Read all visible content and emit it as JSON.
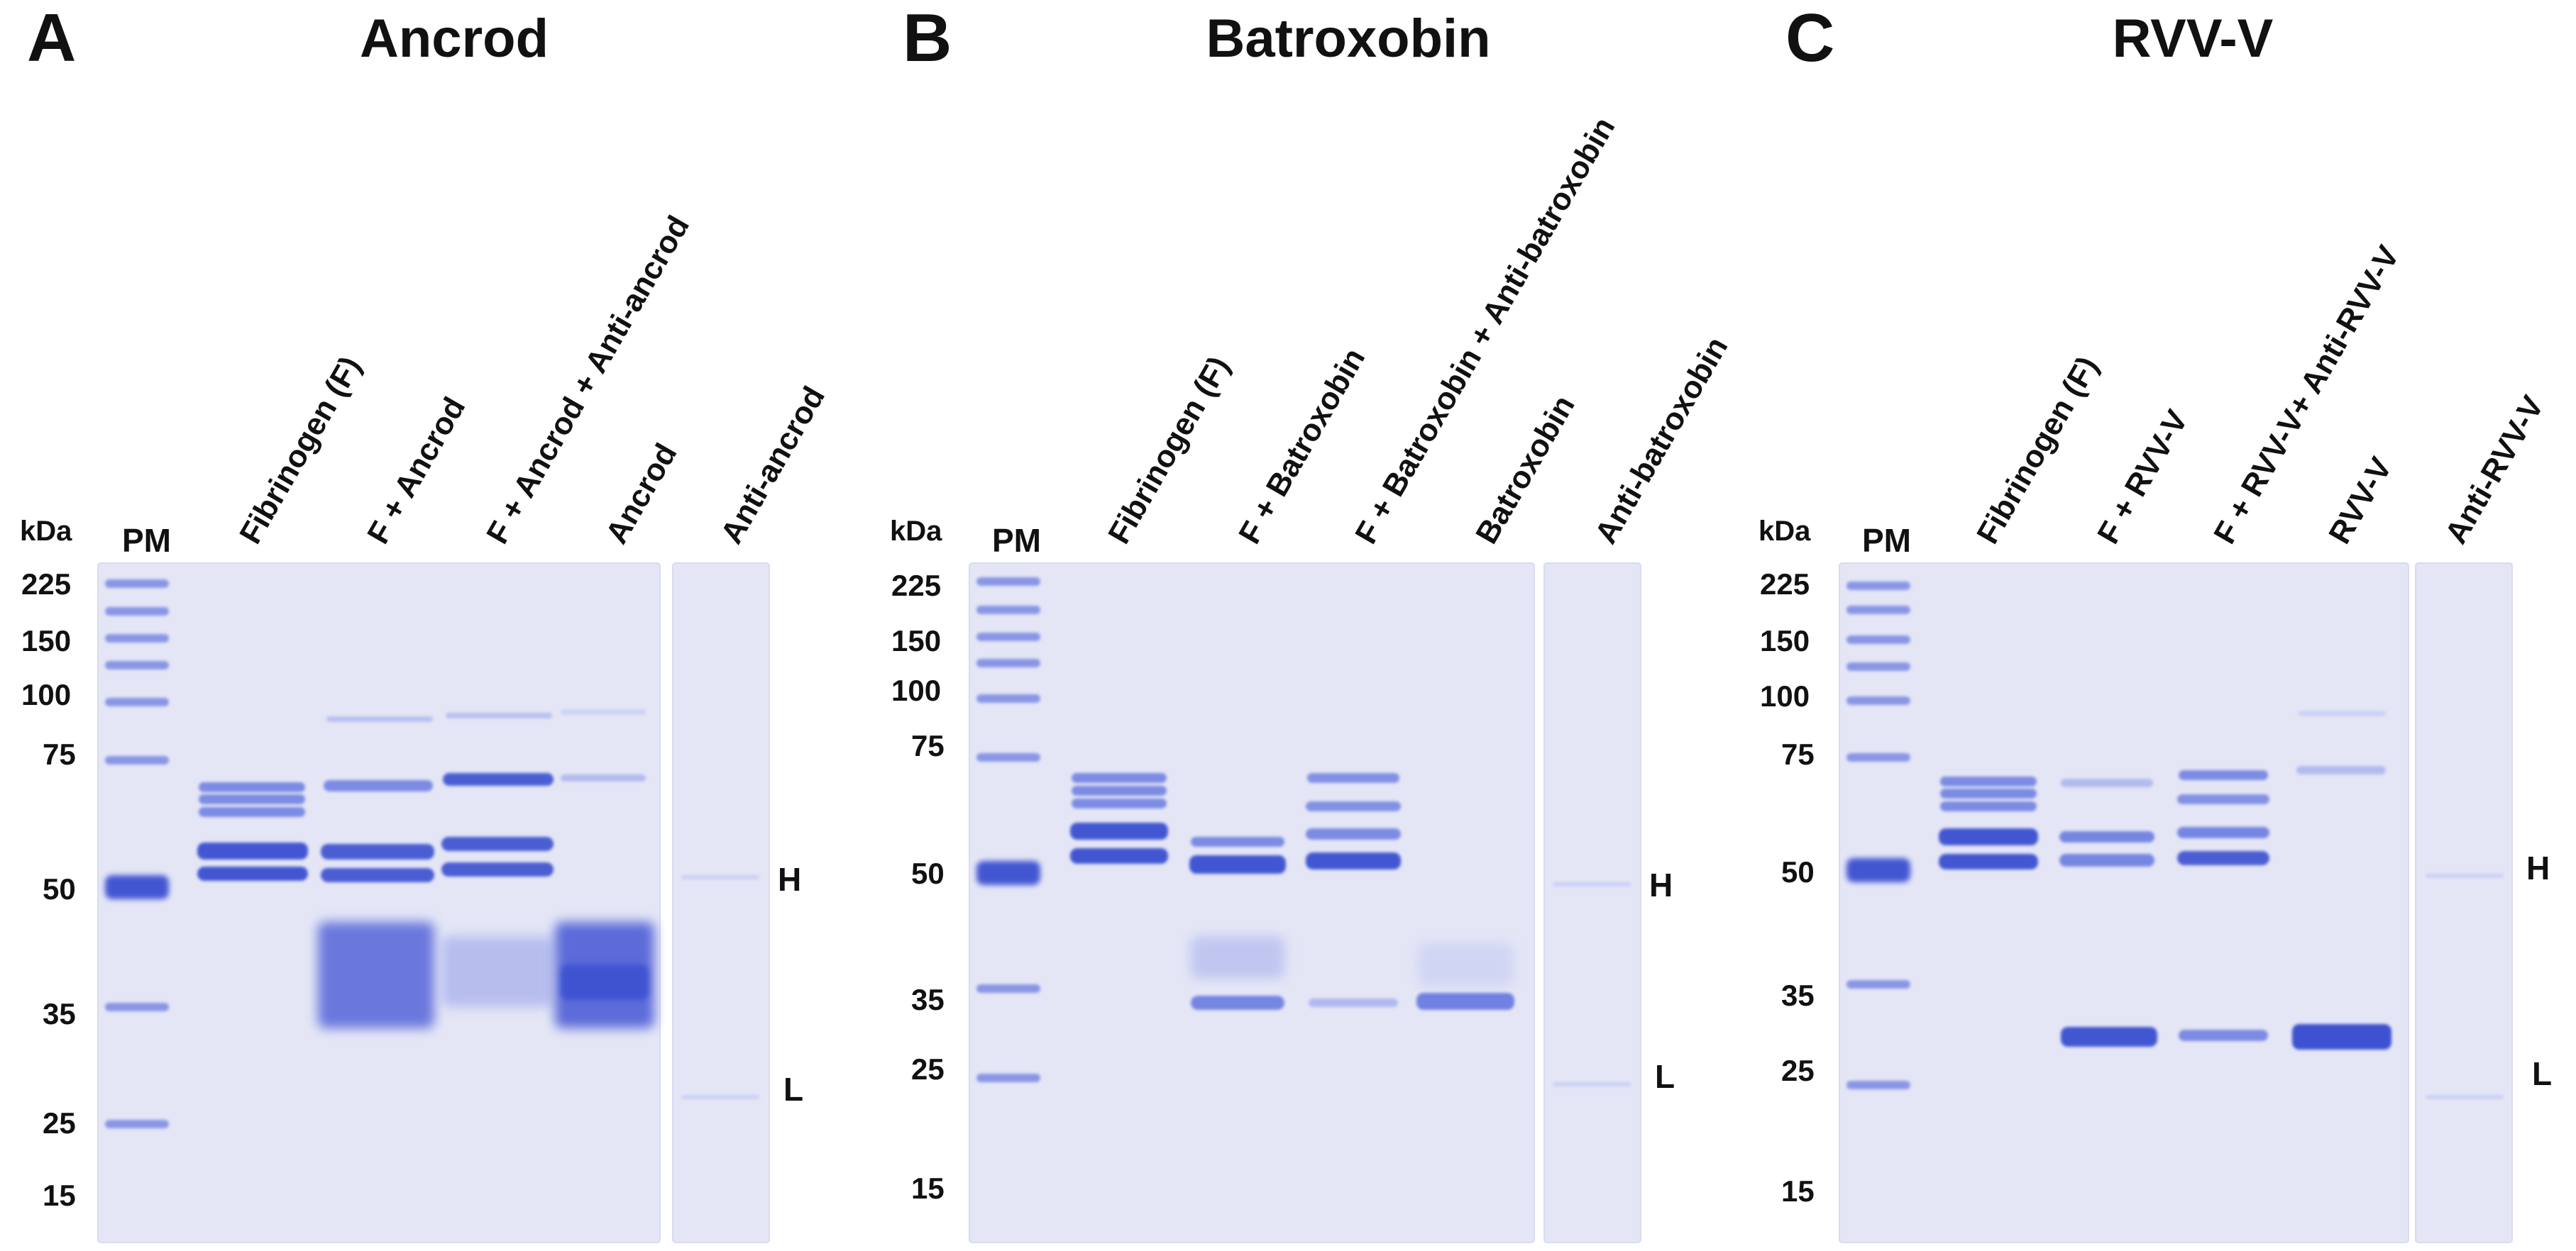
{
  "figure": {
    "kda_label": "kDa",
    "pm_label": "PM",
    "mw_markers": [
      "225",
      "150",
      "100",
      "75",
      "50",
      "35",
      "25",
      "15"
    ],
    "chain_labels": {
      "heavy": "H",
      "light": "L"
    },
    "colors": {
      "gel_background": "#e4e6f6",
      "gel_background_edge": "#d8dbf1",
      "band_strong": "#3b4fd0",
      "band_medium": "#6a7be0",
      "band_weak": "#a7b1ec",
      "band_faint": "#c8cef3",
      "smear": "#5565d8"
    },
    "panels": [
      {
        "letter": "A",
        "title": "Ancrod",
        "lanes": [
          "Fibrinogen (F)",
          "F + Ancrod",
          "F + Ancrod + Anti-ancrod",
          "Ancrod",
          "Anti-ancrod"
        ]
      },
      {
        "letter": "B",
        "title": "Batroxobin",
        "lanes": [
          "Fibrinogen (F)",
          "F + Batroxobin",
          "F + Batroxobin + Anti-batroxobin",
          "Batroxobin",
          "Anti-batroxobin"
        ]
      },
      {
        "letter": "C",
        "title": "RVV-V",
        "lanes": [
          "Fibrinogen (F)",
          "F + RVV-V",
          "F + RVV-V+ Anti-RVV-V",
          "RVV-V",
          "Anti-RVV-V"
        ]
      }
    ]
  }
}
